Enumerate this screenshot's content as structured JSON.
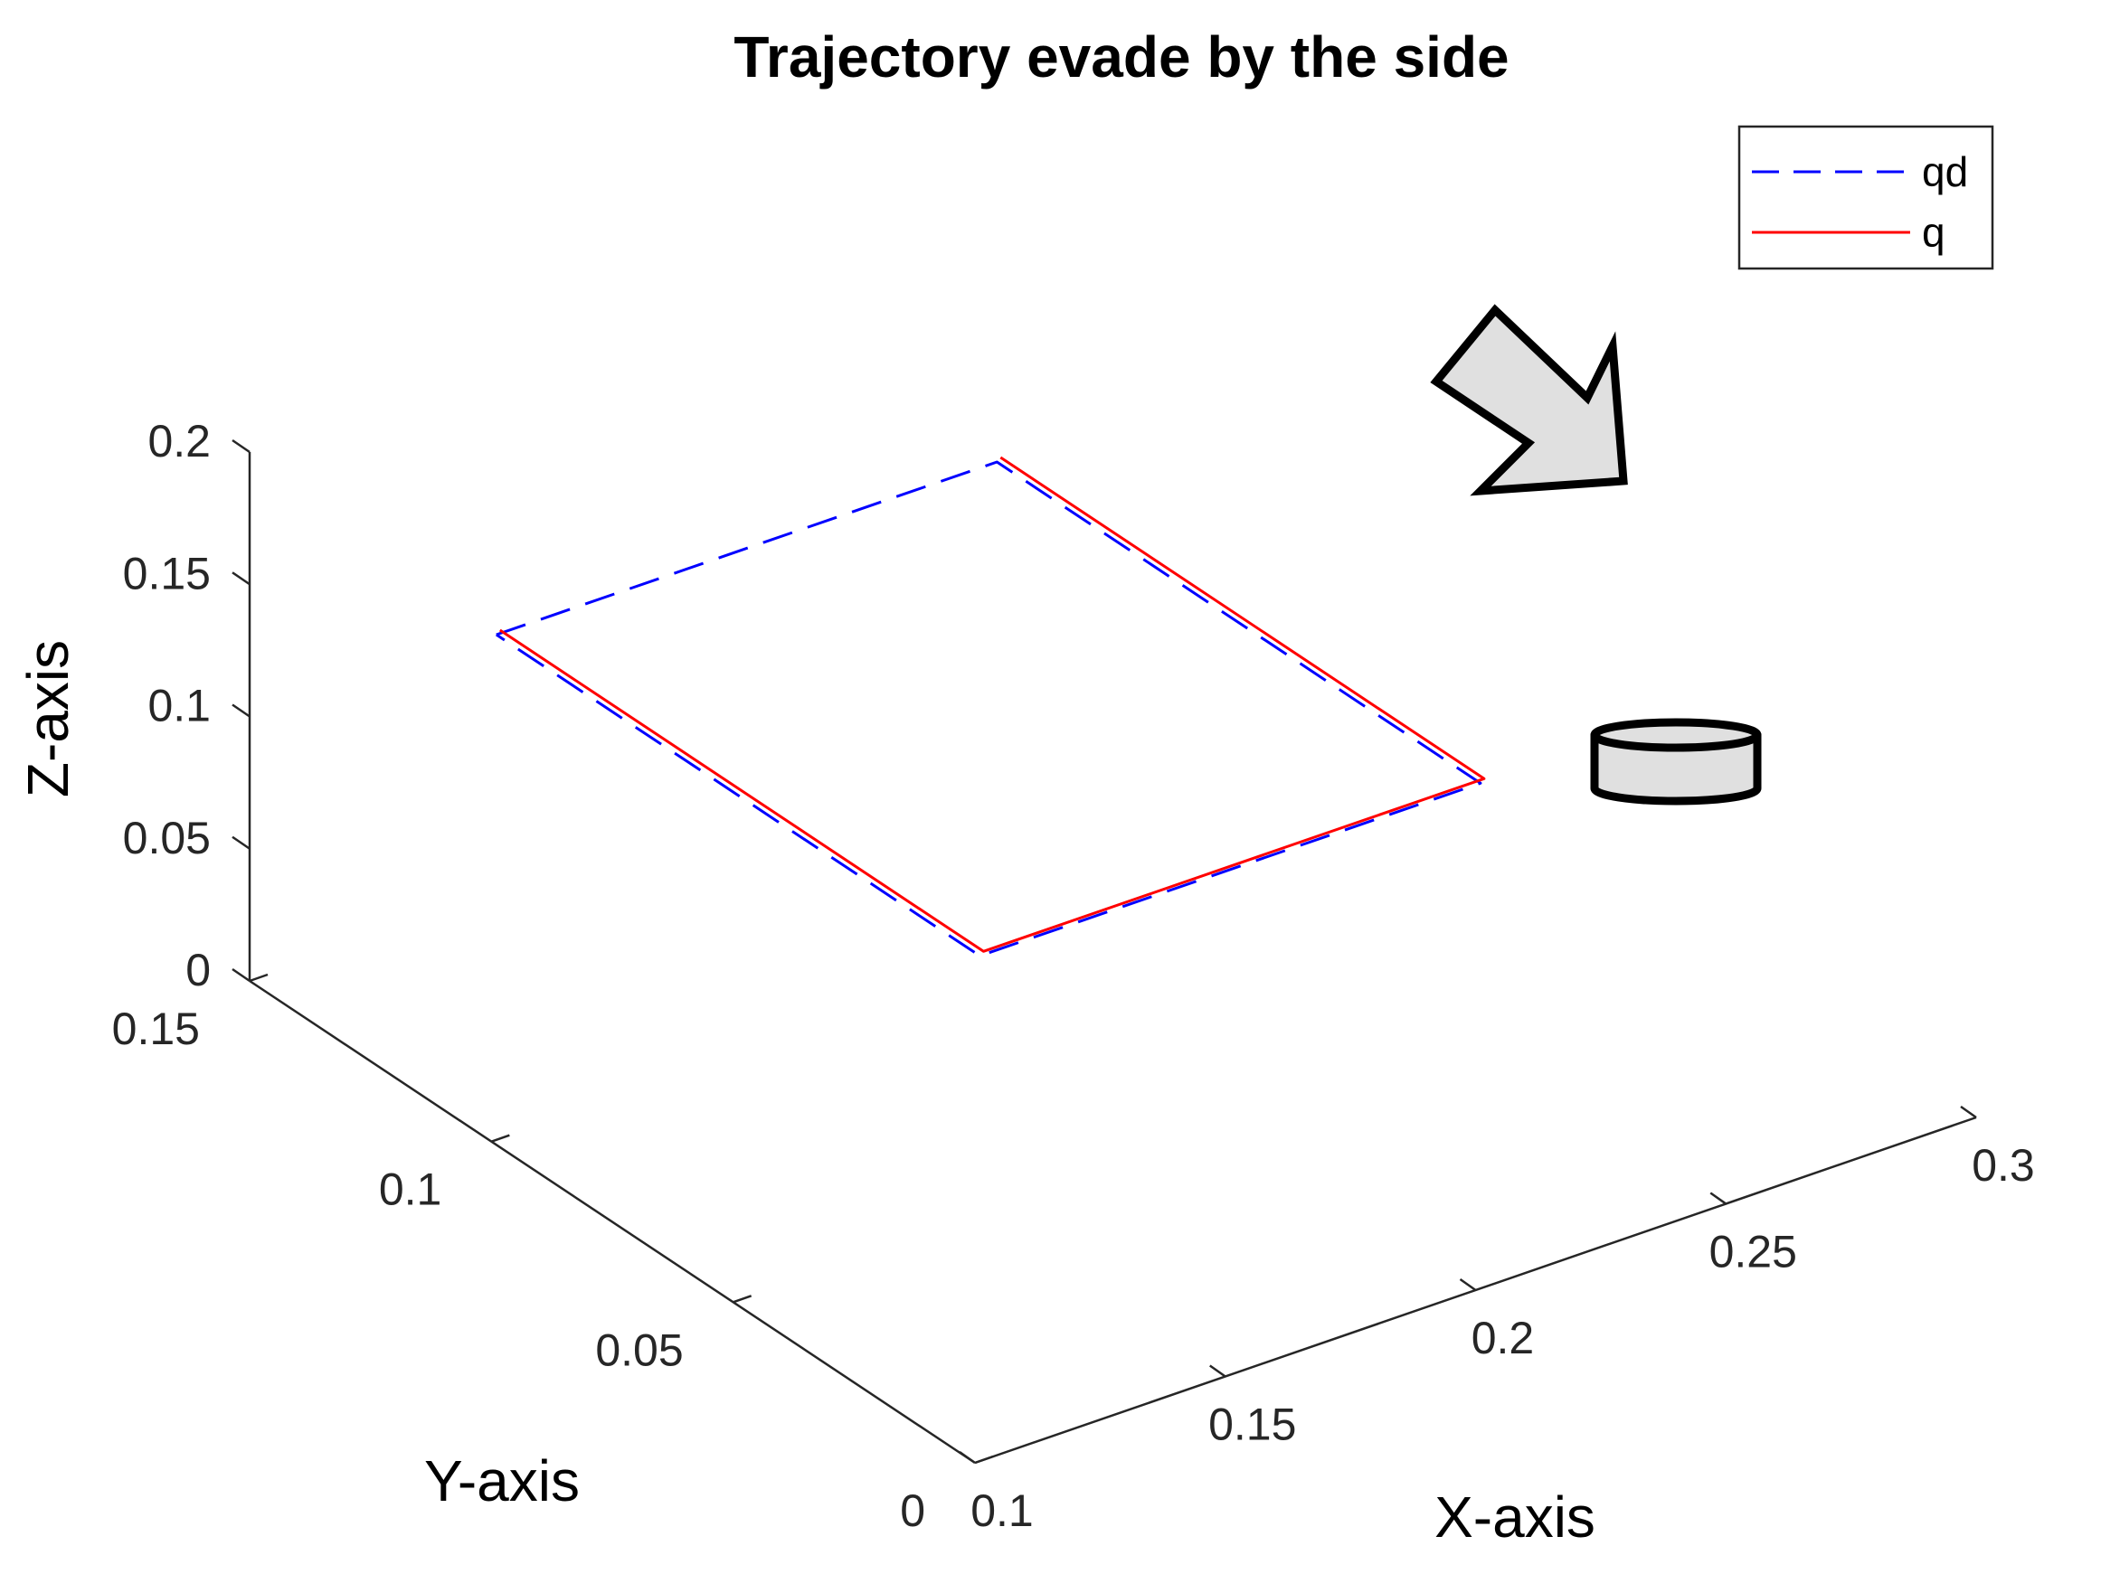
{
  "chart_data": {
    "type": "line",
    "title": "Trajectory evade by the side",
    "xlabel": "X-axis",
    "ylabel": "Y-axis",
    "zlabel": "Z-axis",
    "xlim": [
      0.1,
      0.3
    ],
    "ylim": [
      0,
      0.15
    ],
    "zlim": [
      0,
      0.2
    ],
    "x_ticks": [
      "0.1",
      "0.15",
      "0.2",
      "0.25",
      "0.3"
    ],
    "y_ticks": [
      "0",
      "0.05",
      "0.1",
      "0.15"
    ],
    "z_ticks": [
      "0",
      "0.05",
      "0.1",
      "0.15",
      "0.2"
    ],
    "legend": {
      "position": "top-right",
      "entries": [
        {
          "label": "qd",
          "color": "#0000ff",
          "style": "dashed"
        },
        {
          "label": "q",
          "color": "#ff0000",
          "style": "solid"
        }
      ]
    },
    "series": [
      {
        "name": "qd",
        "color": "#0000ff",
        "style": "dashed",
        "x": [
          0.15,
          0.25,
          0.25,
          0.15,
          0.15
        ],
        "y": [
          0.15,
          0.15,
          0.05,
          0.05,
          0.15
        ],
        "z": [
          0.1,
          0.1,
          0.1,
          0.1,
          0.1
        ]
      },
      {
        "name": "q",
        "color": "#ff0000",
        "style": "solid",
        "x": [
          0.15,
          0.15,
          0.25,
          0.25
        ],
        "y": [
          0.15,
          0.05,
          0.05,
          0.15
        ],
        "z": [
          0.1,
          0.1,
          0.1,
          0.1
        ]
      }
    ],
    "annotations": [
      {
        "type": "obstacle-cylinder-icon",
        "fill": "#e0e0e0"
      },
      {
        "type": "direction-arrow-icon",
        "fill": "#e0e0e0"
      }
    ]
  }
}
